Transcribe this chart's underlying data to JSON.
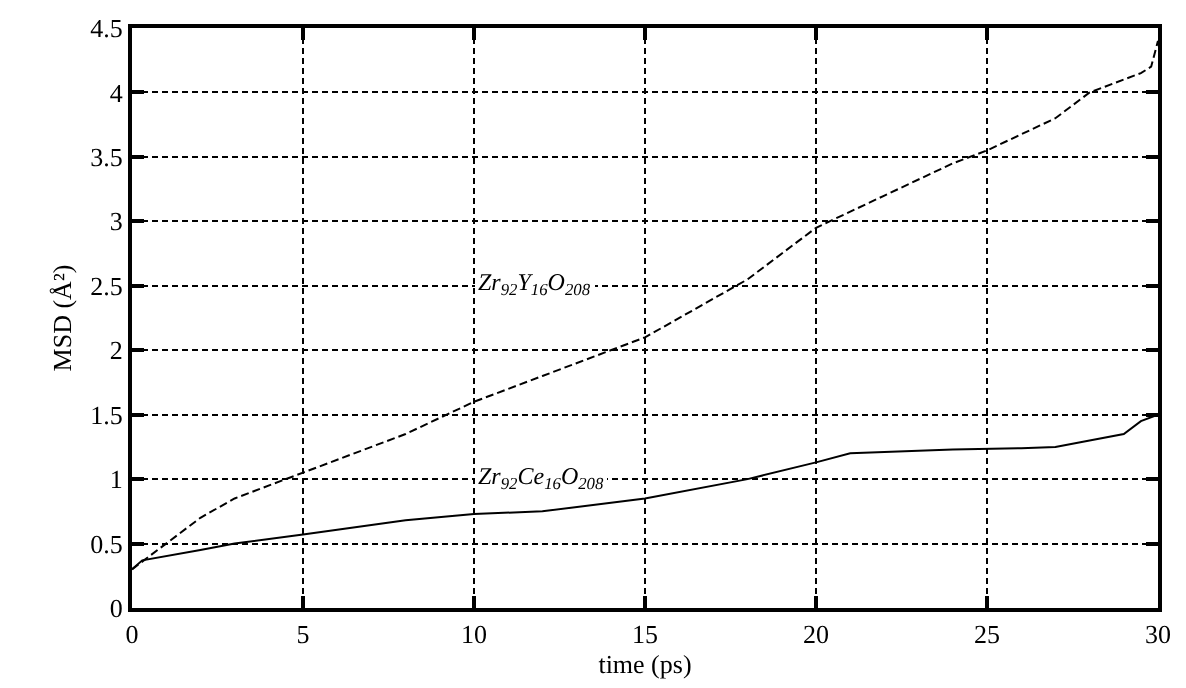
{
  "chart_data": {
    "type": "line",
    "xlabel": "time (ps)",
    "ylabel": "MSD (Å²)",
    "xlim": [
      0,
      30
    ],
    "xticks": [
      0,
      5,
      10,
      15,
      20,
      25,
      30
    ],
    "ylim": [
      0,
      4.5
    ],
    "yticks": [
      0,
      0.5,
      1,
      1.5,
      2,
      2.5,
      3,
      3.5,
      4,
      4.5
    ],
    "grid": true,
    "series": [
      {
        "name": "Zr$_{92}$Y$_{16}$O$_{208}$",
        "color": "#000000",
        "line_style": "dashed",
        "x": [
          0,
          0.5,
          2,
          3,
          5,
          8,
          10,
          12,
          15,
          17,
          18,
          20,
          22,
          24,
          25,
          27,
          28,
          29,
          29.5,
          29.8,
          30
        ],
        "values": [
          0.3,
          0.4,
          0.7,
          0.85,
          1.05,
          1.35,
          1.6,
          1.8,
          2.1,
          2.4,
          2.55,
          2.95,
          3.2,
          3.45,
          3.55,
          3.8,
          4.0,
          4.1,
          4.15,
          4.2,
          4.4
        ]
      },
      {
        "name": "Zr$_{92}$Ce$_{16}$O$_{208}$",
        "color": "#000000",
        "line_style": "solid",
        "x": [
          0,
          0.3,
          2,
          3,
          5,
          8,
          10,
          12,
          15,
          18,
          20,
          21,
          24,
          26,
          27,
          28,
          29,
          29.5,
          30
        ],
        "values": [
          0.3,
          0.37,
          0.45,
          0.5,
          0.57,
          0.68,
          0.73,
          0.75,
          0.85,
          1.0,
          1.13,
          1.2,
          1.23,
          1.24,
          1.25,
          1.3,
          1.35,
          1.45,
          1.5
        ]
      }
    ]
  }
}
